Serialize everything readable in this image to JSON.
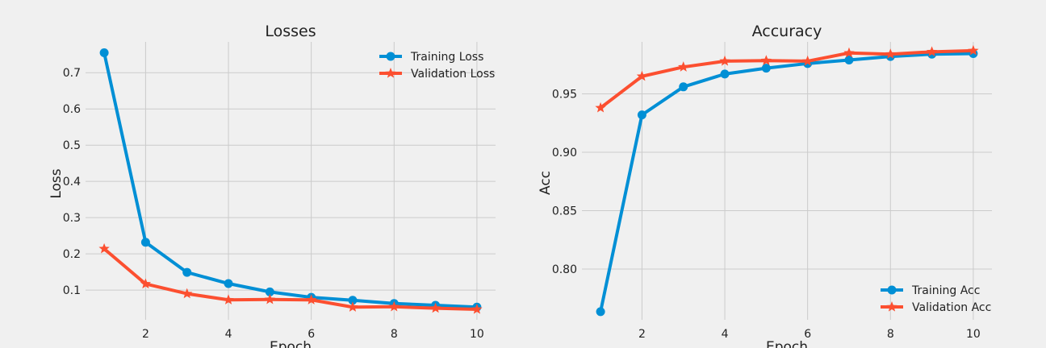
{
  "chart_data": [
    {
      "type": "line",
      "title": "Losses",
      "xlabel": "Epoch",
      "ylabel": "Loss",
      "x": [
        1,
        2,
        3,
        4,
        5,
        6,
        7,
        8,
        9,
        10
      ],
      "xlim": [
        0.55,
        10.45
      ],
      "ylim": [
        0.018,
        0.785
      ],
      "xticks": [
        2,
        4,
        6,
        8,
        10
      ],
      "xtick_labels": [
        "2",
        "4",
        "6",
        "8",
        "10"
      ],
      "yticks": [
        0.1,
        0.2,
        0.3,
        0.4,
        0.5,
        0.6,
        0.7
      ],
      "ytick_labels": [
        "0.1",
        "0.2",
        "0.3",
        "0.4",
        "0.5",
        "0.6",
        "0.7"
      ],
      "grid": true,
      "legend_position": "top-right",
      "series": [
        {
          "name": "Training Loss",
          "color": "#008fd5",
          "marker": "circle",
          "values": [
            0.755,
            0.232,
            0.149,
            0.118,
            0.095,
            0.08,
            0.072,
            0.063,
            0.058,
            0.053
          ]
        },
        {
          "name": "Validation Loss",
          "color": "#fc4f30",
          "marker": "star",
          "values": [
            0.214,
            0.117,
            0.09,
            0.073,
            0.074,
            0.073,
            0.053,
            0.054,
            0.05,
            0.047
          ]
        }
      ]
    },
    {
      "type": "line",
      "title": "Accuracy",
      "xlabel": "Epoch",
      "ylabel": "Acc",
      "x": [
        1,
        2,
        3,
        4,
        5,
        6,
        7,
        8,
        9,
        10
      ],
      "xlim": [
        0.55,
        10.45
      ],
      "ylim": [
        0.7565,
        0.9945
      ],
      "xticks": [
        2,
        4,
        6,
        8,
        10
      ],
      "xtick_labels": [
        "2",
        "4",
        "6",
        "8",
        "10"
      ],
      "yticks": [
        0.8,
        0.85,
        0.9,
        0.95
      ],
      "ytick_labels": [
        "0.80",
        "0.85",
        "0.90",
        "0.95"
      ],
      "grid": true,
      "legend_position": "bottom-right",
      "series": [
        {
          "name": "Training Acc",
          "color": "#008fd5",
          "marker": "circle",
          "values": [
            0.7635,
            0.932,
            0.956,
            0.967,
            0.972,
            0.976,
            0.979,
            0.982,
            0.984,
            0.9845
          ]
        },
        {
          "name": "Validation Acc",
          "color": "#fc4f30",
          "marker": "star",
          "values": [
            0.938,
            0.965,
            0.973,
            0.978,
            0.9785,
            0.978,
            0.985,
            0.984,
            0.986,
            0.987
          ]
        }
      ]
    }
  ]
}
